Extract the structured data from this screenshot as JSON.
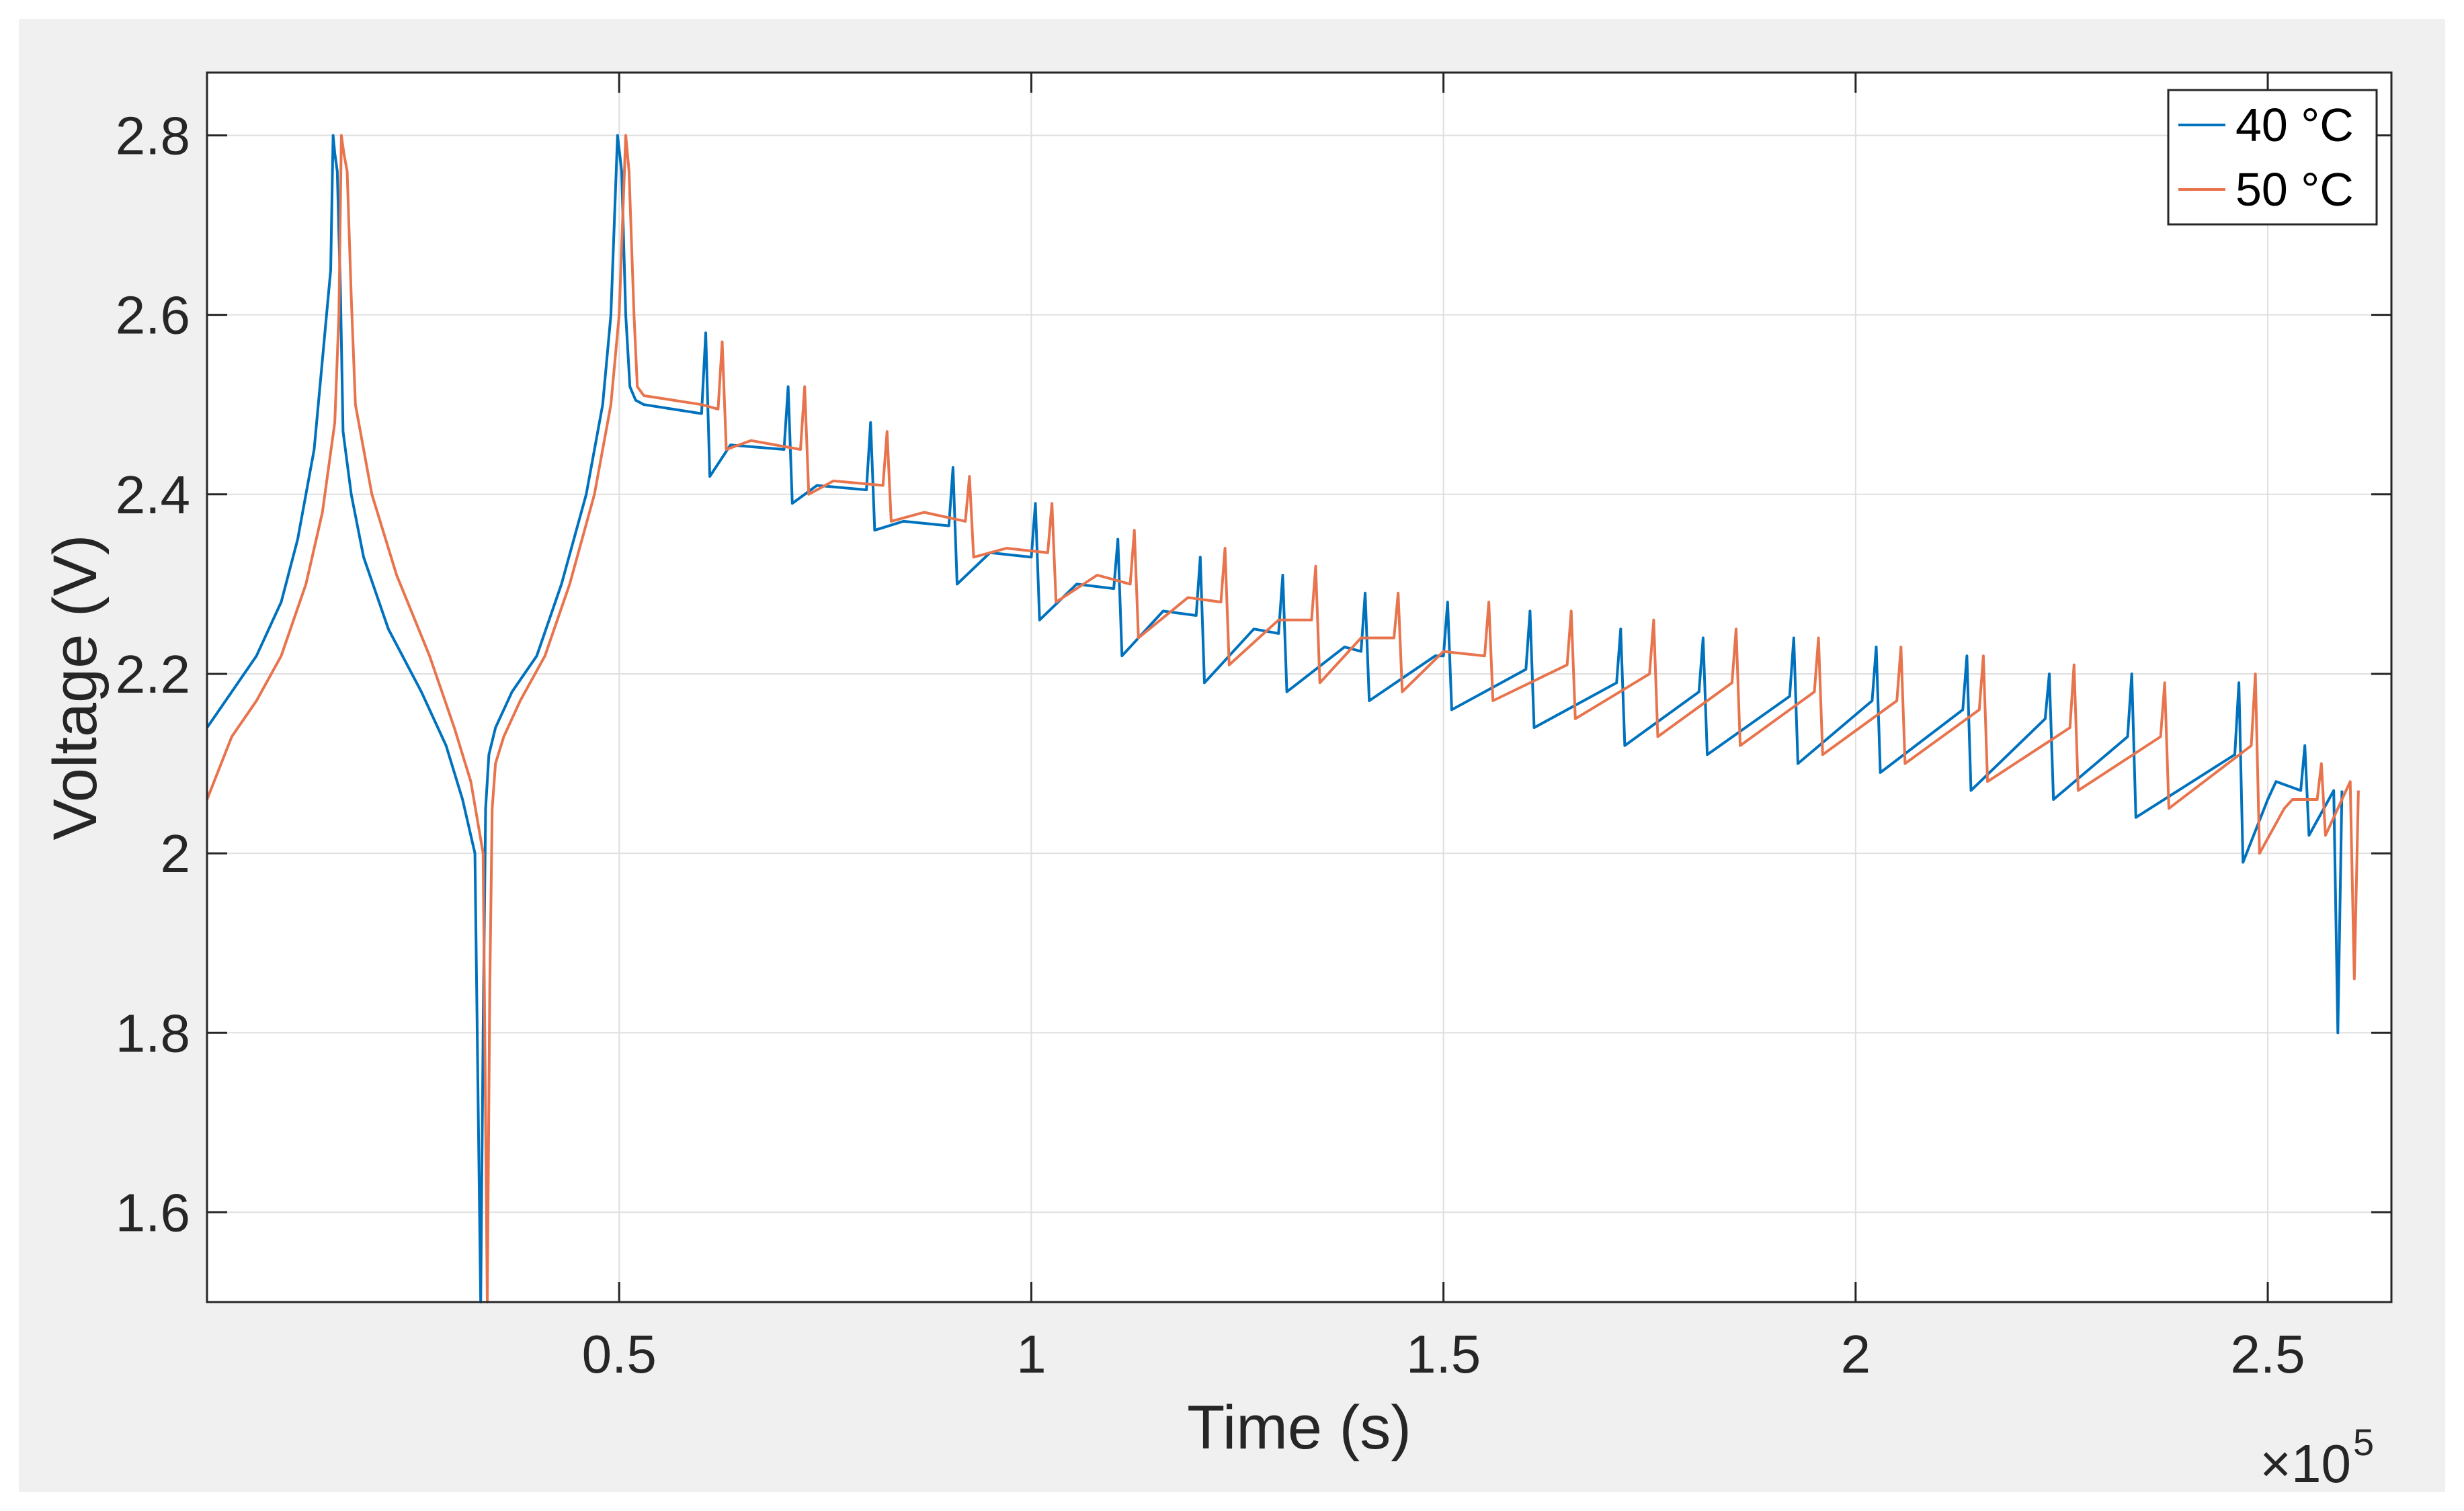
{
  "chart_data": {
    "type": "line",
    "title": "",
    "xlabel": "Time (s)",
    "ylabel": "Voltage (V)",
    "x_exponent_label": "×10",
    "x_exponent_power": "5",
    "xlim": [
      0,
      2.65
    ],
    "ylim": [
      1.5,
      2.87
    ],
    "x_ticks": [
      0.5,
      1,
      1.5,
      2,
      2.5
    ],
    "x_tick_labels": [
      "0.5",
      "1",
      "1.5",
      "2",
      "2.5"
    ],
    "y_ticks": [
      1.6,
      1.8,
      2.0,
      2.2,
      2.4,
      2.6,
      2.8
    ],
    "y_tick_labels": [
      "1.6",
      "1.8",
      "2",
      "2.2",
      "2.4",
      "2.6",
      "2.8"
    ],
    "grid": true,
    "legend_position": "top-right",
    "series": [
      {
        "name": "40 °C",
        "color": "#0072bd",
        "x": [
          0,
          0.03,
          0.06,
          0.09,
          0.11,
          0.13,
          0.14,
          0.15,
          0.153,
          0.155,
          0.158,
          0.162,
          0.165,
          0.175,
          0.19,
          0.22,
          0.26,
          0.29,
          0.31,
          0.325,
          0.332,
          0.335,
          0.338,
          0.342,
          0.35,
          0.37,
          0.4,
          0.43,
          0.46,
          0.48,
          0.49,
          0.498,
          0.503,
          0.508,
          0.513,
          0.52,
          0.53,
          0.6,
          0.605,
          0.61,
          0.635,
          0.7,
          0.705,
          0.71,
          0.74,
          0.8,
          0.805,
          0.81,
          0.845,
          0.9,
          0.905,
          0.91,
          0.95,
          1.0,
          1.005,
          1.01,
          1.055,
          1.1,
          1.105,
          1.11,
          1.16,
          1.2,
          1.205,
          1.21,
          1.27,
          1.3,
          1.305,
          1.31,
          1.38,
          1.4,
          1.405,
          1.41,
          1.49,
          1.5,
          1.505,
          1.51,
          1.6,
          1.605,
          1.61,
          1.71,
          1.715,
          1.72,
          1.81,
          1.815,
          1.82,
          1.92,
          1.925,
          1.93,
          2.02,
          2.025,
          2.03,
          2.13,
          2.135,
          2.14,
          2.23,
          2.235,
          2.24,
          2.33,
          2.335,
          2.34,
          2.46,
          2.465,
          2.47,
          2.5,
          2.51,
          2.54,
          2.545,
          2.55,
          2.58,
          2.585,
          2.59
        ],
        "y": [
          2.14,
          2.18,
          2.22,
          2.28,
          2.35,
          2.45,
          2.55,
          2.65,
          2.8,
          2.78,
          2.76,
          2.62,
          2.47,
          2.4,
          2.33,
          2.25,
          2.18,
          2.12,
          2.06,
          2.0,
          1.5,
          1.8,
          2.05,
          2.11,
          2.14,
          2.18,
          2.22,
          2.3,
          2.4,
          2.5,
          2.6,
          2.8,
          2.76,
          2.6,
          2.52,
          2.505,
          2.5,
          2.49,
          2.58,
          2.42,
          2.455,
          2.45,
          2.52,
          2.39,
          2.41,
          2.405,
          2.48,
          2.36,
          2.37,
          2.365,
          2.43,
          2.3,
          2.335,
          2.33,
          2.39,
          2.26,
          2.3,
          2.295,
          2.35,
          2.22,
          2.27,
          2.265,
          2.33,
          2.19,
          2.25,
          2.245,
          2.31,
          2.18,
          2.23,
          2.225,
          2.29,
          2.17,
          2.22,
          2.22,
          2.28,
          2.16,
          2.205,
          2.27,
          2.14,
          2.19,
          2.25,
          2.12,
          2.18,
          2.24,
          2.11,
          2.175,
          2.24,
          2.1,
          2.17,
          2.23,
          2.09,
          2.16,
          2.22,
          2.07,
          2.15,
          2.2,
          2.06,
          2.13,
          2.2,
          2.04,
          2.11,
          2.19,
          1.99,
          2.06,
          2.08,
          2.07,
          2.12,
          2.02,
          2.07,
          1.8,
          2.07
        ]
      },
      {
        "name": "50 °C",
        "color": "#e8744d",
        "x": [
          0,
          0.03,
          0.06,
          0.09,
          0.12,
          0.14,
          0.155,
          0.16,
          0.163,
          0.166,
          0.17,
          0.175,
          0.18,
          0.2,
          0.23,
          0.27,
          0.3,
          0.32,
          0.335,
          0.34,
          0.343,
          0.346,
          0.35,
          0.36,
          0.38,
          0.41,
          0.44,
          0.47,
          0.49,
          0.5,
          0.508,
          0.512,
          0.518,
          0.522,
          0.53,
          0.6,
          0.62,
          0.625,
          0.63,
          0.66,
          0.72,
          0.725,
          0.73,
          0.76,
          0.82,
          0.825,
          0.83,
          0.87,
          0.92,
          0.925,
          0.93,
          0.97,
          1.02,
          1.025,
          1.03,
          1.08,
          1.12,
          1.125,
          1.13,
          1.19,
          1.23,
          1.235,
          1.24,
          1.3,
          1.34,
          1.345,
          1.35,
          1.4,
          1.44,
          1.445,
          1.45,
          1.5,
          1.55,
          1.555,
          1.56,
          1.65,
          1.655,
          1.66,
          1.75,
          1.755,
          1.76,
          1.85,
          1.855,
          1.86,
          1.95,
          1.955,
          1.96,
          2.05,
          2.055,
          2.06,
          2.15,
          2.155,
          2.16,
          2.26,
          2.265,
          2.27,
          2.37,
          2.375,
          2.38,
          2.48,
          2.485,
          2.49,
          2.52,
          2.53,
          2.56,
          2.565,
          2.57,
          2.6,
          2.605,
          2.61
        ],
        "y": [
          2.06,
          2.13,
          2.17,
          2.22,
          2.3,
          2.38,
          2.48,
          2.6,
          2.8,
          2.78,
          2.76,
          2.62,
          2.5,
          2.4,
          2.31,
          2.22,
          2.14,
          2.08,
          2.0,
          1.5,
          1.85,
          2.05,
          2.1,
          2.13,
          2.17,
          2.22,
          2.3,
          2.4,
          2.5,
          2.6,
          2.8,
          2.76,
          2.6,
          2.52,
          2.51,
          2.5,
          2.495,
          2.57,
          2.45,
          2.46,
          2.45,
          2.52,
          2.4,
          2.415,
          2.41,
          2.47,
          2.37,
          2.38,
          2.37,
          2.42,
          2.33,
          2.34,
          2.335,
          2.39,
          2.28,
          2.31,
          2.3,
          2.36,
          2.24,
          2.285,
          2.28,
          2.34,
          2.21,
          2.26,
          2.26,
          2.32,
          2.19,
          2.24,
          2.24,
          2.29,
          2.18,
          2.225,
          2.22,
          2.28,
          2.17,
          2.21,
          2.27,
          2.15,
          2.2,
          2.26,
          2.13,
          2.19,
          2.25,
          2.12,
          2.18,
          2.24,
          2.11,
          2.17,
          2.23,
          2.1,
          2.16,
          2.22,
          2.08,
          2.14,
          2.21,
          2.07,
          2.13,
          2.19,
          2.05,
          2.12,
          2.2,
          2.0,
          2.05,
          2.06,
          2.06,
          2.1,
          2.02,
          2.08,
          1.86,
          2.07
        ]
      }
    ]
  }
}
